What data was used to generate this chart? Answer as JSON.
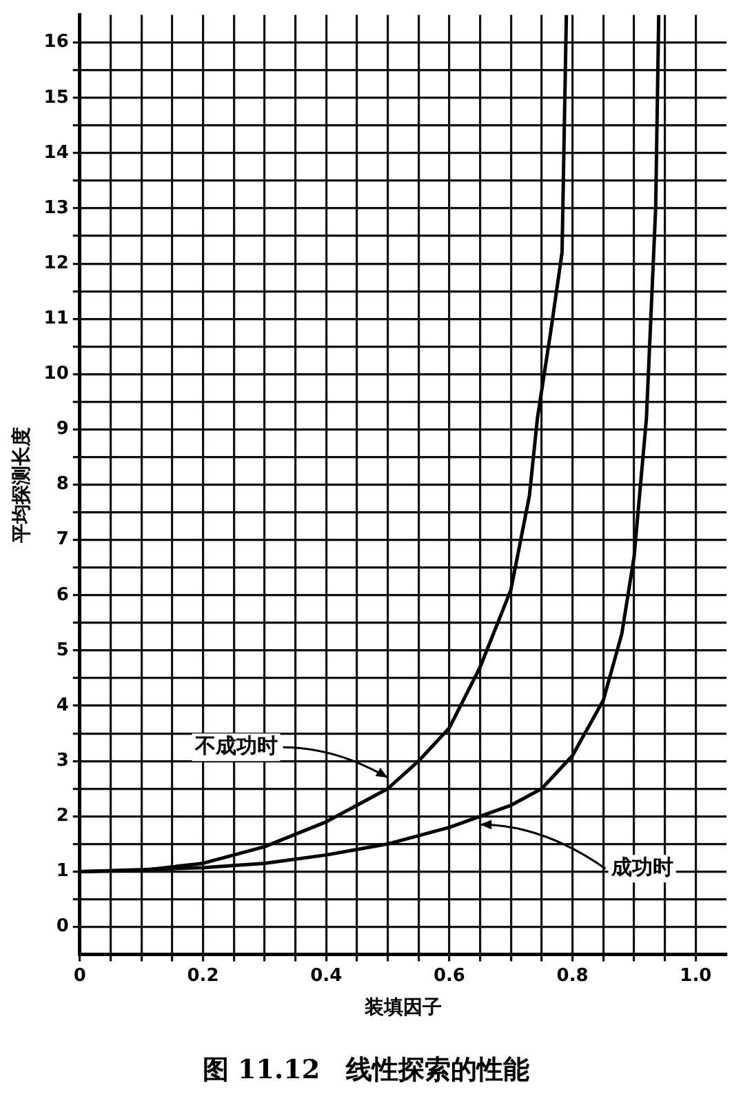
{
  "chart_data": {
    "type": "line",
    "title": "图 11.12　线性探索的性能",
    "xlabel": "装填因子",
    "ylabel": "平均探测长度",
    "xlim": [
      0,
      1.05
    ],
    "ylim": [
      -0.5,
      16.5
    ],
    "xticks": [
      0,
      {
        "value": 0.05,
        "label": null
      },
      {
        "value": 0.1,
        "label": null
      },
      {
        "value": 0.15,
        "label": null
      },
      0.2,
      {
        "value": 0.25,
        "label": null
      },
      {
        "value": 0.3,
        "label": null
      },
      {
        "value": 0.35,
        "label": null
      },
      0.4,
      {
        "value": 0.45,
        "label": null
      },
      {
        "value": 0.5,
        "label": null
      },
      {
        "value": 0.55,
        "label": null
      },
      0.6,
      {
        "value": 0.65,
        "label": null
      },
      {
        "value": 0.7,
        "label": null
      },
      {
        "value": 0.75,
        "label": null
      },
      0.8,
      {
        "value": 0.85,
        "label": null
      },
      {
        "value": 0.9,
        "label": null
      },
      {
        "value": 0.95,
        "label": null
      },
      {
        "value": 1.0,
        "label": "1.0"
      }
    ],
    "yticks": [
      0,
      {
        "value": 0.5,
        "label": null
      },
      1,
      {
        "value": 1.5,
        "label": null
      },
      2,
      {
        "value": 2.5,
        "label": null
      },
      3,
      {
        "value": 3.5,
        "label": null
      },
      4,
      {
        "value": 4.5,
        "label": null
      },
      5,
      {
        "value": 5.5,
        "label": null
      },
      6,
      {
        "value": 6.5,
        "label": null
      },
      7,
      {
        "value": 7.5,
        "label": null
      },
      8,
      {
        "value": 8.5,
        "label": null
      },
      9,
      {
        "value": 9.5,
        "label": null
      },
      10,
      {
        "value": 10.5,
        "label": null
      },
      11,
      {
        "value": 11.5,
        "label": null
      },
      12,
      {
        "value": 12.5,
        "label": null
      },
      13,
      {
        "value": 13.5,
        "label": null
      },
      14,
      {
        "value": 14.5,
        "label": null
      },
      15,
      {
        "value": 15.5,
        "label": null
      },
      16
    ],
    "grid": true,
    "legend": false,
    "marker": "none",
    "line_style": "solid",
    "series": [
      {
        "color": "#000000",
        "x": [
          0,
          0.1,
          0.2,
          0.3,
          0.4,
          0.5,
          0.55,
          0.6,
          0.65,
          0.7,
          0.73,
          0.743,
          0.765,
          0.783,
          0.79
        ],
        "values": [
          1,
          1.02,
          1.15,
          1.45,
          1.9,
          2.5,
          3.0,
          3.6,
          4.7,
          6.1,
          7.8,
          9.2,
          10.8,
          12.2,
          16.5
        ]
      },
      {
        "color": "#000000",
        "x": [
          0,
          0.2,
          0.3,
          0.4,
          0.5,
          0.6,
          0.7,
          0.75,
          0.8,
          0.85,
          0.88,
          0.9,
          0.92,
          0.935,
          0.94
        ],
        "values": [
          1,
          1.07,
          1.15,
          1.3,
          1.5,
          1.8,
          2.2,
          2.5,
          3.1,
          4.1,
          5.3,
          6.7,
          9.2,
          13,
          16.5
        ]
      }
    ],
    "annotations": [
      {
        "text": "不成功时",
        "x": 0.5,
        "y": 2.7
      },
      {
        "text": "成功时",
        "x": 0.65,
        "y": 1.85
      }
    ]
  }
}
